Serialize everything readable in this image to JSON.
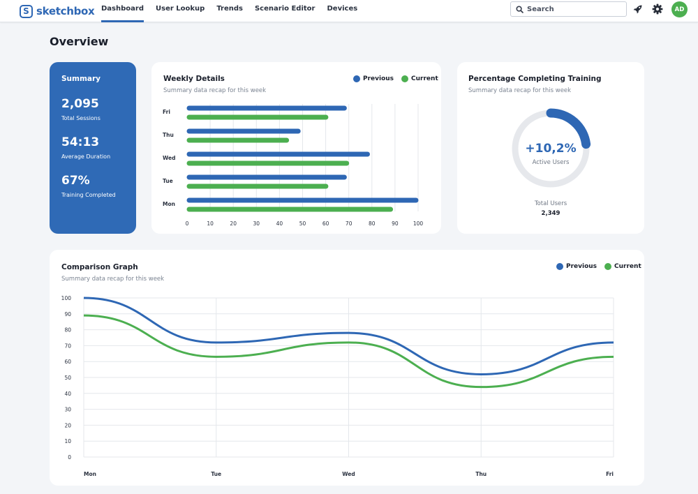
{
  "header": {
    "brand": {
      "badge": "S",
      "name": "sketchbox"
    },
    "nav": [
      "Dashboard",
      "User Lookup",
      "Trends",
      "Scenario Editor",
      "Devices"
    ],
    "active_nav": "Dashboard",
    "search_placeholder": "Search",
    "avatar_initials": "AD",
    "icons": [
      "search-icon",
      "rocket-icon",
      "gear-icon"
    ]
  },
  "page": {
    "title": "Overview"
  },
  "summary": {
    "title": "Summary",
    "stats": [
      {
        "value": "2,095",
        "label": "Total Sessions"
      },
      {
        "value": "54:13",
        "label": "Average Duration"
      },
      {
        "value": "67%",
        "label": "Training Completed"
      }
    ]
  },
  "weekly": {
    "title": "Weekly Details",
    "subtitle": "Summary data recap for this week",
    "legend": [
      "Previous",
      "Current"
    ]
  },
  "training": {
    "title": "Percentage Completing Training",
    "subtitle": "Summary data recap for this week",
    "value": "+10,2%",
    "label": "Active Users",
    "total_label": "Total Users",
    "total_value": "2,349",
    "ring_fraction": 0.23
  },
  "comparison": {
    "title": "Comparison Graph",
    "subtitle": "Summary data recap for this week",
    "legend": [
      "Previous",
      "Current"
    ]
  },
  "colors": {
    "previous": "#2e67b4",
    "current": "#4caf50",
    "ring_track": "#e6e8ec",
    "grid": "#e4e7eb"
  },
  "chart_data": [
    {
      "type": "bar",
      "orientation": "horizontal",
      "categories": [
        "Fri",
        "Thu",
        "Wed",
        "Tue",
        "Mon"
      ],
      "series": [
        {
          "name": "Previous",
          "values": [
            69,
            49,
            79,
            69,
            100
          ]
        },
        {
          "name": "Current",
          "values": [
            61,
            44,
            70,
            61,
            89
          ]
        }
      ],
      "xlim": [
        0,
        100
      ],
      "xticks": [
        0,
        10,
        20,
        30,
        40,
        50,
        60,
        70,
        80,
        90,
        100
      ],
      "grid": true
    },
    {
      "type": "line",
      "categories": [
        "Mon",
        "Tue",
        "Wed",
        "Thu",
        "Fri"
      ],
      "series": [
        {
          "name": "Previous",
          "values": [
            100,
            72,
            78,
            52,
            72
          ]
        },
        {
          "name": "Current",
          "values": [
            89,
            63,
            72,
            44,
            63
          ]
        }
      ],
      "ylim": [
        0,
        100
      ],
      "yticks": [
        0,
        10,
        20,
        30,
        40,
        50,
        60,
        70,
        80,
        90,
        100
      ],
      "grid": true
    }
  ]
}
